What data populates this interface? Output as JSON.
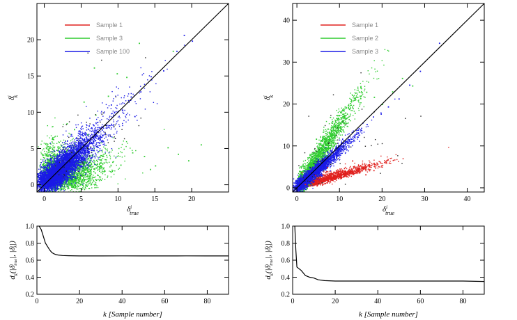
{
  "chart_data": [
    {
      "type": "scatter",
      "xlim": [
        -1,
        25
      ],
      "ylim": [
        -1,
        25
      ],
      "xticks": [
        0,
        5,
        10,
        15,
        20
      ],
      "yticks": [
        0,
        5,
        10,
        15,
        20
      ],
      "xlabel": "δ^i_true",
      "ylabel": "δ^i_k",
      "reference_line": "y = x",
      "legend_position": "top-left",
      "series": [
        {
          "name": "Sample 1",
          "color": "#e0201d",
          "x": [],
          "y": []
        },
        {
          "name": "Sample 3",
          "color": "#2ecc2e",
          "x": [
            6.2,
            7.5,
            8.1,
            9.3,
            10.4,
            12.0,
            13.6,
            15.1,
            16.8,
            18.2,
            19.6,
            21.3,
            7.0,
            8.7,
            11.2,
            5.4,
            6.8,
            9.9,
            12.9,
            17.5,
            0.2,
            0.6,
            1.1,
            4.1,
            14.4,
            3.1,
            2.7,
            5.9
          ],
          "y": [
            1.2,
            2.4,
            1.8,
            3.1,
            2.7,
            4.4,
            3.9,
            2.6,
            5.1,
            4.2,
            3.3,
            5.5,
            9.6,
            12.2,
            14.8,
            11.4,
            16.1,
            15.3,
            19.5,
            18.4,
            5.6,
            4.9,
            6.3,
            7.6,
            2.1,
            8.4,
            0.3,
            6.9
          ]
        },
        {
          "name": "Sample 100",
          "color": "#1a1ae6",
          "x": [
            0.8,
            1.6,
            2.4,
            3.3,
            4.1,
            5.0,
            5.8,
            6.7,
            7.6,
            8.5,
            9.4,
            10.6,
            11.8,
            13.1,
            14.5,
            16.2,
            18.0,
            20.1,
            2.1,
            3.6,
            5.3,
            6.1,
            7.9,
            4.6,
            1.3,
            9.1,
            12.3,
            19.0
          ],
          "y": [
            0.9,
            1.5,
            2.6,
            3.2,
            4.3,
            4.8,
            6.0,
            6.5,
            7.8,
            8.2,
            9.6,
            10.3,
            12.1,
            12.8,
            14.9,
            15.7,
            18.4,
            19.8,
            3.4,
            4.9,
            3.8,
            8.1,
            5.9,
            1.9,
            2.2,
            11.0,
            9.4,
            20.6
          ]
        }
      ]
    },
    {
      "type": "scatter",
      "xlim": [
        -1,
        44
      ],
      "ylim": [
        -1,
        44
      ],
      "xticks": [
        0,
        10,
        20,
        30,
        40
      ],
      "yticks": [
        0,
        10,
        20,
        30,
        40
      ],
      "xlabel": "δ^i_true",
      "ylabel": "δ^i_k",
      "reference_line": "y = x",
      "legend_position": "top-left",
      "series": [
        {
          "name": "Sample 1",
          "color": "#e0201d",
          "x": [
            2.0,
            3.5,
            5.0,
            6.5,
            8.0,
            9.5,
            11.0,
            12.5,
            14.0,
            15.5,
            17.0,
            19.0,
            21.0,
            7.2,
            10.3,
            13.1,
            4.4,
            1.2,
            16.2,
            18.1
          ],
          "y": [
            0.8,
            1.3,
            1.7,
            2.2,
            2.8,
            3.0,
            3.5,
            3.9,
            4.3,
            4.6,
            5.0,
            5.6,
            6.1,
            4.8,
            2.4,
            6.4,
            2.9,
            3.6,
            3.1,
            4.1
          ]
        },
        {
          "name": "Sample 2",
          "color": "#2ecc2e",
          "x": [
            1.5,
            2.8,
            3.9,
            5.2,
            6.1,
            7.3,
            8.4,
            9.6,
            10.8,
            12.1,
            13.5,
            15.0,
            16.4,
            18.2,
            20.1,
            22.5,
            24.8,
            27.2,
            4.6,
            7.9
          ],
          "y": [
            3.8,
            6.4,
            8.2,
            10.5,
            12.1,
            14.0,
            15.8,
            17.2,
            18.4,
            19.6,
            20.9,
            21.3,
            22.8,
            21.6,
            19.9,
            22.9,
            26.1,
            24.3,
            11.6,
            16.8
          ]
        },
        {
          "name": "Sample 3",
          "color": "#1a1ae6",
          "x": [
            1.0,
            2.2,
            3.5,
            4.8,
            6.0,
            7.2,
            8.5,
            9.8,
            11.0,
            12.3,
            13.6,
            15.0,
            16.5,
            18.0,
            19.8,
            21.5,
            24.0,
            26.5,
            29.0,
            33.5
          ],
          "y": [
            1.4,
            2.7,
            4.1,
            5.3,
            6.5,
            7.4,
            8.6,
            9.3,
            10.5,
            11.2,
            12.4,
            13.8,
            15.1,
            16.9,
            17.6,
            19.3,
            21.2,
            24.5,
            27.8,
            34.5
          ]
        }
      ]
    },
    {
      "type": "line",
      "xlim": [
        0,
        90
      ],
      "ylim": [
        0.2,
        1.0
      ],
      "xticks": [
        0,
        20,
        40,
        60,
        80
      ],
      "yticks": [
        0.2,
        0.4,
        0.6,
        0.8,
        1.0
      ],
      "xlabel": "k [Sample number]",
      "ylabel": "d_k(|δ^i_true|, |δ^i_k|)",
      "series": [
        {
          "x": [
            1,
            2,
            3,
            4,
            5,
            6,
            7,
            8,
            9,
            10,
            12,
            15,
            20,
            30,
            40,
            50,
            60,
            70,
            80,
            90
          ],
          "values": [
            1.0,
            0.96,
            0.88,
            0.8,
            0.76,
            0.72,
            0.69,
            0.675,
            0.665,
            0.66,
            0.655,
            0.652,
            0.65,
            0.65,
            0.651,
            0.65,
            0.65,
            0.651,
            0.65,
            0.65
          ]
        }
      ]
    },
    {
      "type": "line",
      "xlim": [
        0,
        90
      ],
      "ylim": [
        0.2,
        1.0
      ],
      "xticks": [
        0,
        20,
        40,
        60,
        80
      ],
      "yticks": [
        0.2,
        0.4,
        0.6,
        0.8,
        1.0
      ],
      "xlabel": "k [Sample number]",
      "ylabel": "d_k(|δ^i_true|, |δ^i_k|)",
      "series": [
        {
          "x": [
            1,
            1.5,
            2,
            3,
            4,
            5,
            6,
            7,
            8,
            10,
            12,
            15,
            20,
            30,
            40,
            50,
            60,
            70,
            80,
            90
          ],
          "values": [
            1.0,
            0.72,
            0.52,
            0.5,
            0.48,
            0.45,
            0.42,
            0.41,
            0.4,
            0.39,
            0.37,
            0.36,
            0.355,
            0.355,
            0.355,
            0.355,
            0.355,
            0.355,
            0.355,
            0.35
          ]
        }
      ]
    }
  ]
}
